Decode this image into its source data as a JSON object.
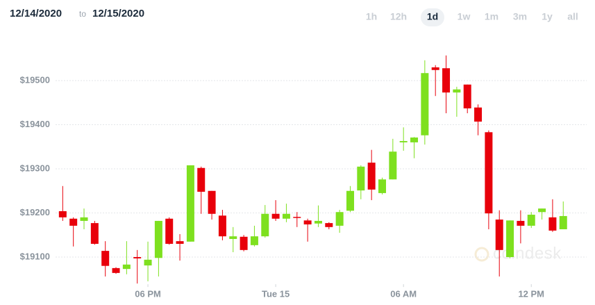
{
  "header": {
    "from": "12/14/2020",
    "to_word": "to",
    "to": "12/15/2020",
    "ranges": [
      {
        "label": "1h",
        "active": false
      },
      {
        "label": "12h",
        "active": false
      },
      {
        "label": "1d",
        "active": true
      },
      {
        "label": "1w",
        "active": false
      },
      {
        "label": "1m",
        "active": false
      },
      {
        "label": "3m",
        "active": false
      },
      {
        "label": "1y",
        "active": false
      },
      {
        "label": "all",
        "active": false
      }
    ]
  },
  "watermark": "coindesk",
  "chart_data": {
    "type": "candlestick",
    "up_color": "#7ee01f",
    "down_color": "#e8000b",
    "grid": true,
    "xlim": [
      13.5,
      38.6
    ],
    "xticks": [
      {
        "value": 18,
        "label": "06 PM"
      },
      {
        "value": 24,
        "label": "Tue 15"
      },
      {
        "value": 30,
        "label": "06 AM"
      },
      {
        "value": 36,
        "label": "12 PM"
      }
    ],
    "ylim": [
      19040,
      19600
    ],
    "yticks": [
      {
        "value": 19100,
        "label": "$19100"
      },
      {
        "value": 19200,
        "label": "$19200"
      },
      {
        "value": 19300,
        "label": "$19300"
      },
      {
        "value": 19400,
        "label": "$19400"
      },
      {
        "value": 19500,
        "label": "$19500"
      }
    ],
    "x": [
      14,
      14.5,
      15,
      15.5,
      16,
      16.5,
      17,
      17.5,
      18,
      18.5,
      19,
      19.5,
      20,
      20.5,
      21,
      21.5,
      22,
      22.5,
      23,
      23.5,
      24,
      24.5,
      25,
      25.5,
      26,
      26.5,
      27,
      27.5,
      28,
      28.5,
      29,
      29.5,
      30,
      30.5,
      31,
      31.5,
      32,
      32.5,
      33,
      33.5,
      34,
      34.5,
      35,
      35.5,
      36,
      36.5,
      37,
      37.5
    ],
    "open": [
      19204,
      19187,
      19182,
      19177,
      19114,
      19075,
      19073,
      19100,
      19081,
      19098,
      19187,
      19136,
      19135,
      19302,
      19250,
      19194,
      19141,
      19146,
      19127,
      19147,
      19198,
      19187,
      19191,
      19183,
      19176,
      19177,
      19171,
      19205,
      19251,
      19314,
      19245,
      19276,
      19360,
      19360,
      19376,
      19530,
      19528,
      19473,
      19491,
      19439,
      19383,
      19185,
      19100,
      19182,
      19171,
      19202,
      19190,
      19163
    ],
    "high": [
      19261,
      19190,
      19210,
      19182,
      19136,
      19077,
      19136,
      19116,
      19135,
      19182,
      19190,
      19152,
      19308,
      19305,
      19250,
      19207,
      19168,
      19150,
      19171,
      19218,
      19229,
      19221,
      19202,
      19187,
      19217,
      19179,
      19207,
      19261,
      19308,
      19343,
      19280,
      19368,
      19394,
      19372,
      19546,
      19535,
      19557,
      19486,
      19491,
      19446,
      19387,
      19206,
      19183,
      19206,
      19202,
      19210,
      19231,
      19226
    ],
    "low": [
      19182,
      19124,
      19163,
      19128,
      19056,
      19062,
      19061,
      19040,
      19045,
      19056,
      19128,
      19092,
      19135,
      19198,
      19185,
      19138,
      19111,
      19113,
      19124,
      19144,
      19182,
      19179,
      19168,
      19135,
      19168,
      19163,
      19155,
      19202,
      19231,
      19229,
      19242,
      19276,
      19341,
      19324,
      19355,
      19465,
      19426,
      19418,
      19426,
      19376,
      19163,
      19056,
      19097,
      19131,
      19166,
      19185,
      19157,
      19163
    ],
    "close": [
      19190,
      19171,
      19190,
      19130,
      19080,
      19064,
      19083,
      19097,
      19094,
      19182,
      19130,
      19130,
      19308,
      19248,
      19198,
      19147,
      19147,
      19116,
      19147,
      19198,
      19187,
      19198,
      19189,
      19174,
      19182,
      19168,
      19202,
      19250,
      19305,
      19253,
      19276,
      19339,
      19363,
      19371,
      19517,
      19524,
      19473,
      19480,
      19437,
      19407,
      19199,
      19116,
      19183,
      19171,
      19196,
      19210,
      19160,
      19193
    ]
  }
}
